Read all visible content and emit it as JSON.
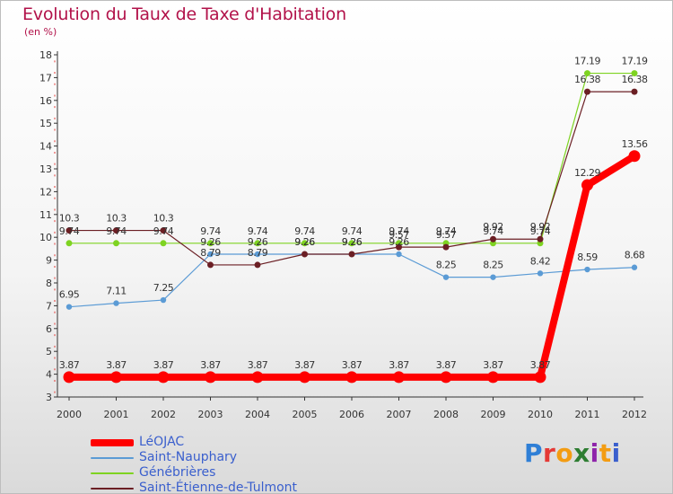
{
  "title": "Evolution du Taux de Taxe d'Habitation",
  "unit_label": "(en %)",
  "brand": {
    "letters": [
      "P",
      "r",
      "o",
      "x",
      "i",
      "t",
      "i"
    ],
    "colors": [
      "#2f7fd6",
      "#e53935",
      "#f39c12",
      "#2e7d32",
      "#8e24aa",
      "#f39c12",
      "#3a5fcd"
    ]
  },
  "chart_data": {
    "type": "line",
    "x": [
      "2000",
      "2001",
      "2002",
      "2003",
      "2004",
      "2005",
      "2006",
      "2007",
      "2008",
      "2009",
      "2010",
      "2011",
      "2012"
    ],
    "ylim": [
      3,
      18
    ],
    "yticks": [
      3,
      4,
      5,
      6,
      7,
      8,
      9,
      10,
      11,
      12,
      13,
      14,
      15,
      16,
      17,
      18
    ],
    "grid": false,
    "legend_position": "bottom-left",
    "series": [
      {
        "name": "LéOJAC",
        "color": "#ff0000",
        "values": [
          3.87,
          3.87,
          3.87,
          3.87,
          3.87,
          3.87,
          3.87,
          3.87,
          3.87,
          3.87,
          3.87,
          12.29,
          13.56
        ],
        "labels": [
          "3.87",
          "3.87",
          "3.87",
          "3.87",
          "3.87",
          "3.87",
          "3.87",
          "3.87",
          "3.87",
          "3.87",
          "3.87",
          "12.29",
          "13.56"
        ]
      },
      {
        "name": "Saint-Nauphary",
        "color": "#5b9bd5",
        "values": [
          6.95,
          7.11,
          7.25,
          9.26,
          9.26,
          9.26,
          9.26,
          9.26,
          8.25,
          8.25,
          8.42,
          8.59,
          8.68
        ],
        "labels": [
          "6.95",
          "7.11",
          "7.25",
          "9.26",
          "9.26",
          "9.26",
          "9.26",
          "9.26",
          "8.25",
          "8.25",
          "8.42",
          "8.59",
          "8.68"
        ]
      },
      {
        "name": "Génébrières",
        "color": "#7ed321",
        "values": [
          9.74,
          9.74,
          9.74,
          9.74,
          9.74,
          9.74,
          9.74,
          9.74,
          9.74,
          9.74,
          9.74,
          17.19,
          17.19
        ],
        "labels": [
          "9.74",
          "9.74",
          "9.74",
          "9.74",
          "9.74",
          "9.74",
          "9.74",
          "9.74",
          "9.74",
          "9.74",
          "9.74",
          "17.19",
          "17.19"
        ]
      },
      {
        "name": "Saint-Étienne-de-Tulmont",
        "color": "#6b1f24",
        "values": [
          10.3,
          10.3,
          10.3,
          8.79,
          8.79,
          9.26,
          9.26,
          9.57,
          9.57,
          9.92,
          9.92,
          16.38,
          16.38
        ],
        "labels": [
          "10.3",
          "10.3",
          "10.3",
          "8.79",
          "8.79",
          "9.26",
          "9.26",
          "9.57",
          "9.57",
          "9.92",
          "9.92",
          "16.38",
          "16.38"
        ]
      }
    ]
  }
}
